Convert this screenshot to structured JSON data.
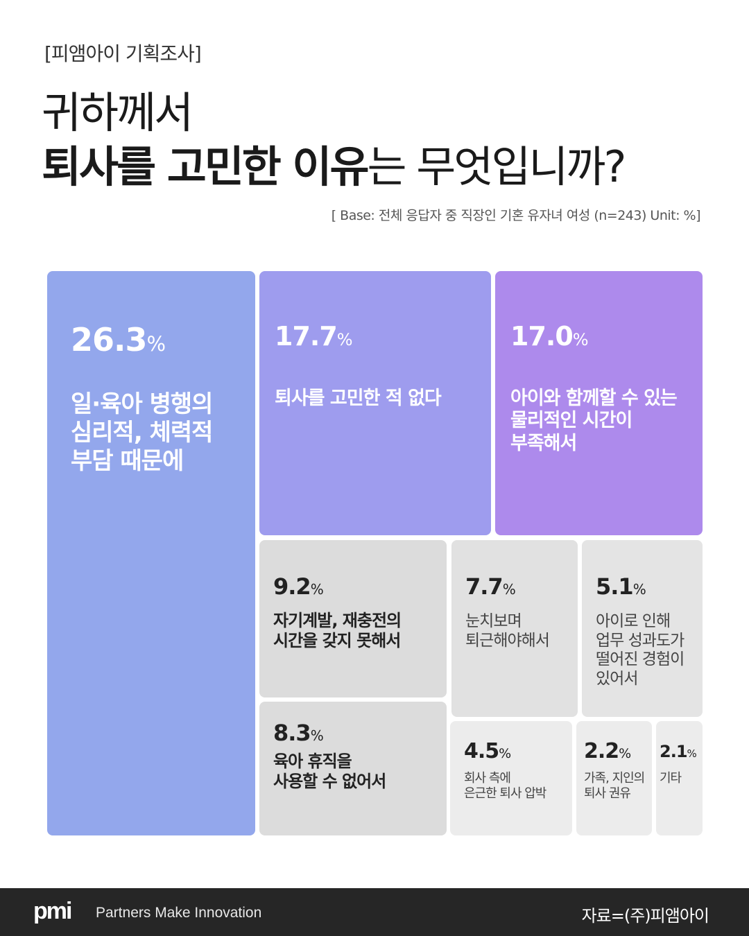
{
  "header": {
    "tag": "[피앰아이 기획조사]",
    "title_line1": "귀하께서",
    "title_bold": "퇴사를 고민한 이유",
    "title_rest": "는 무엇입니까?",
    "base_note": "[ Base: 전체 응답자 중 직장인 기혼 유자녀 여성 (n=243) Unit: %]"
  },
  "chart_data": {
    "type": "treemap",
    "unit": "%",
    "items": [
      {
        "label": "일·육아 병행의\n심리적, 체력적\n부담 때문에",
        "value": 26.3,
        "value_text": "26.3",
        "color": "#93a7ec"
      },
      {
        "label": "퇴사를 고민한 적 없다",
        "value": 17.7,
        "value_text": "17.7",
        "color": "#9e9cee"
      },
      {
        "label": "아이와 함께할 수 있는\n물리적인 시간이\n부족해서",
        "value": 17.0,
        "value_text": "17.0",
        "color": "#ad8aec"
      },
      {
        "label": "자기계발, 재충전의\n시간을 갖지 못해서",
        "value": 9.2,
        "value_text": "9.2",
        "color": "#dcdcdc"
      },
      {
        "label": "눈치보며\n퇴근해야해서",
        "value": 7.7,
        "value_text": "7.7",
        "color": "#e1e1e1"
      },
      {
        "label": "아이로 인해\n업무 성과도가\n떨어진 경험이\n있어서",
        "value": 5.1,
        "value_text": "5.1",
        "color": "#e4e4e4"
      },
      {
        "label": "육아 휴직을\n사용할 수 없어서",
        "value": 8.3,
        "value_text": "8.3",
        "color": "#dcdcdc"
      },
      {
        "label": "회사 측에\n은근한 퇴사 압박",
        "value": 4.5,
        "value_text": "4.5",
        "color": "#ececec"
      },
      {
        "label": "가족, 지인의\n퇴사 권유",
        "value": 2.2,
        "value_text": "2.2",
        "color": "#ececec"
      },
      {
        "label": "기타",
        "value": 2.1,
        "value_text": "2.1",
        "color": "#ececec"
      }
    ]
  },
  "footer": {
    "logo": "pmi",
    "slogan": "Partners Make Innovation",
    "source": "자료=(주)피앰아이"
  }
}
